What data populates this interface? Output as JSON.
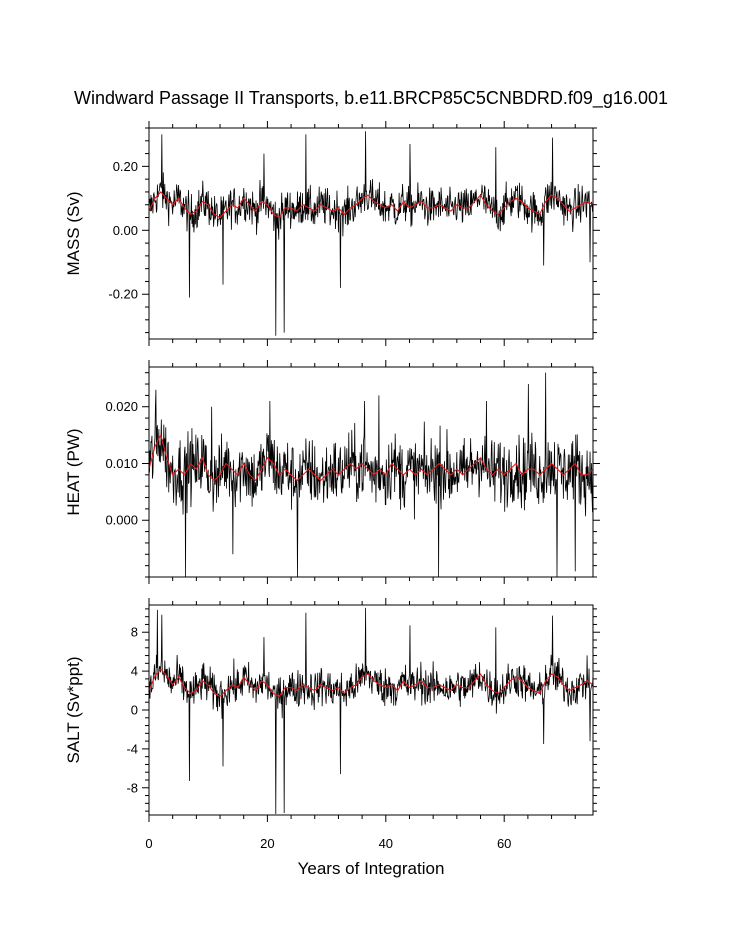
{
  "title": "Windward Passage II Transports, b.e11.BRCP85C5CNBDRD.f09_g16.001",
  "xlabel": "Years of Integration",
  "colors": {
    "raw": "#000000",
    "smoothed": "#e31a1c"
  },
  "chart_data": [
    {
      "type": "line",
      "ylabel": "MASS (Sv)",
      "xlim": [
        0,
        75
      ],
      "ylim": [
        -0.34,
        0.32
      ],
      "yticks": [
        -0.2,
        0.0,
        0.2
      ],
      "ytick_labels": [
        "-0.20",
        "0.00",
        "0.20"
      ],
      "xticks": [
        0,
        20,
        40,
        60
      ],
      "xtick_labels": [
        "0",
        "20",
        "40",
        "60"
      ],
      "show_xtick_labels": false,
      "series": [
        {
          "style": "raw",
          "samples_per_year": 12,
          "noise_amplitude": 0.055,
          "clip": [
            -0.34,
            0.31
          ],
          "spikes": [
            [
              2.2,
              0.3
            ],
            [
              6.8,
              -0.21
            ],
            [
              12.5,
              -0.17
            ],
            [
              19.4,
              0.24
            ],
            [
              21.4,
              -0.33
            ],
            [
              22.8,
              -0.32
            ],
            [
              26.5,
              0.3
            ],
            [
              32.3,
              -0.18
            ],
            [
              36.6,
              0.31
            ],
            [
              44.1,
              0.27
            ],
            [
              58.6,
              0.26
            ],
            [
              66.7,
              -0.11
            ],
            [
              68.2,
              0.29
            ],
            [
              74.5,
              -0.1
            ]
          ]
        },
        {
          "style": "smoothed",
          "x": [
            0,
            1,
            2,
            3,
            4,
            5,
            6,
            7,
            8,
            9,
            10,
            11,
            12,
            13,
            14,
            15,
            16,
            17,
            18,
            19,
            20,
            21,
            22,
            23,
            24,
            25,
            26,
            27,
            28,
            29,
            30,
            31,
            32,
            33,
            34,
            35,
            36,
            37,
            38,
            39,
            40,
            41,
            42,
            43,
            44,
            45,
            46,
            47,
            48,
            49,
            50,
            51,
            52,
            53,
            54,
            55,
            56,
            57,
            58,
            59,
            60,
            61,
            62,
            63,
            64,
            65,
            66,
            67,
            68,
            69,
            70,
            71,
            72,
            73,
            74,
            75
          ],
          "values": [
            0.06,
            0.1,
            0.12,
            0.1,
            0.08,
            0.1,
            0.07,
            0.05,
            0.06,
            0.09,
            0.08,
            0.05,
            0.04,
            0.06,
            0.08,
            0.07,
            0.1,
            0.08,
            0.06,
            0.09,
            0.08,
            0.05,
            0.04,
            0.07,
            0.07,
            0.06,
            0.08,
            0.07,
            0.06,
            0.08,
            0.07,
            0.06,
            0.07,
            0.05,
            0.07,
            0.08,
            0.1,
            0.11,
            0.09,
            0.08,
            0.07,
            0.08,
            0.06,
            0.09,
            0.07,
            0.08,
            0.09,
            0.07,
            0.07,
            0.08,
            0.07,
            0.06,
            0.08,
            0.07,
            0.07,
            0.09,
            0.11,
            0.08,
            0.06,
            0.05,
            0.07,
            0.09,
            0.1,
            0.09,
            0.07,
            0.06,
            0.05,
            0.09,
            0.11,
            0.1,
            0.08,
            0.06,
            0.07,
            0.08,
            0.09,
            0.08
          ]
        }
      ]
    },
    {
      "type": "line",
      "ylabel": "HEAT (PW)",
      "xlim": [
        0,
        75
      ],
      "ylim": [
        -0.01,
        0.027
      ],
      "yticks": [
        0.0,
        0.01,
        0.02
      ],
      "ytick_labels": [
        "0.000",
        "0.010",
        "0.020"
      ],
      "xticks": [
        0,
        20,
        40,
        60
      ],
      "xtick_labels": [
        "0",
        "20",
        "40",
        "60"
      ],
      "show_xtick_labels": false,
      "series": [
        {
          "style": "raw",
          "samples_per_year": 12,
          "noise_amplitude": 0.0055,
          "clip": [
            -0.01,
            0.027
          ],
          "spikes": [
            [
              1.2,
              0.023
            ],
            [
              6.2,
              -0.01
            ],
            [
              10.6,
              0.02
            ],
            [
              14.2,
              -0.006
            ],
            [
              20.4,
              0.021
            ],
            [
              25.1,
              -0.01
            ],
            [
              36.4,
              0.021
            ],
            [
              38.8,
              0.022
            ],
            [
              48.9,
              -0.01
            ],
            [
              57.0,
              0.021
            ],
            [
              64.1,
              0.024
            ],
            [
              67.0,
              0.026
            ],
            [
              68.9,
              -0.01
            ],
            [
              72.0,
              -0.009
            ]
          ]
        },
        {
          "style": "smoothed",
          "x": [
            0,
            1,
            2,
            3,
            4,
            5,
            6,
            7,
            8,
            9,
            10,
            11,
            12,
            13,
            14,
            15,
            16,
            17,
            18,
            19,
            20,
            21,
            22,
            23,
            24,
            25,
            26,
            27,
            28,
            29,
            30,
            31,
            32,
            33,
            34,
            35,
            36,
            37,
            38,
            39,
            40,
            41,
            42,
            43,
            44,
            45,
            46,
            47,
            48,
            49,
            50,
            51,
            52,
            53,
            54,
            55,
            56,
            57,
            58,
            59,
            60,
            61,
            62,
            63,
            64,
            65,
            66,
            67,
            68,
            69,
            70,
            71,
            72,
            73,
            74,
            75
          ],
          "values": [
            0.009,
            0.013,
            0.015,
            0.011,
            0.008,
            0.009,
            0.008,
            0.01,
            0.009,
            0.011,
            0.008,
            0.007,
            0.008,
            0.01,
            0.009,
            0.008,
            0.01,
            0.008,
            0.007,
            0.009,
            0.011,
            0.01,
            0.008,
            0.009,
            0.008,
            0.007,
            0.008,
            0.009,
            0.008,
            0.007,
            0.008,
            0.009,
            0.008,
            0.009,
            0.01,
            0.009,
            0.01,
            0.009,
            0.008,
            0.009,
            0.008,
            0.01,
            0.009,
            0.008,
            0.009,
            0.008,
            0.009,
            0.008,
            0.009,
            0.01,
            0.009,
            0.008,
            0.009,
            0.008,
            0.009,
            0.01,
            0.011,
            0.009,
            0.008,
            0.009,
            0.008,
            0.009,
            0.01,
            0.008,
            0.009,
            0.009,
            0.008,
            0.009,
            0.01,
            0.009,
            0.008,
            0.009,
            0.01,
            0.008,
            0.008,
            0.009
          ]
        }
      ]
    },
    {
      "type": "line",
      "ylabel": "SALT (Sv*ppt)",
      "xlim": [
        0,
        75
      ],
      "ylim": [
        -10.8,
        10.8
      ],
      "yticks": [
        -8,
        -4,
        0,
        4,
        8
      ],
      "ytick_labels": [
        "-8",
        "-4",
        "0",
        "4",
        "8"
      ],
      "xticks": [
        0,
        20,
        40,
        60
      ],
      "xtick_labels": [
        "0",
        "20",
        "40",
        "60"
      ],
      "show_xtick_labels": true,
      "series": [
        {
          "style": "raw",
          "samples_per_year": 12,
          "noise_amplitude": 1.8,
          "clip": [
            -10.8,
            10.6
          ],
          "spikes": [
            [
              1.4,
              10.3
            ],
            [
              2.2,
              9.8
            ],
            [
              6.8,
              -7.3
            ],
            [
              12.5,
              -5.8
            ],
            [
              19.4,
              7.5
            ],
            [
              21.4,
              -10.7
            ],
            [
              22.8,
              -10.6
            ],
            [
              26.5,
              10.0
            ],
            [
              32.3,
              -6.6
            ],
            [
              36.6,
              10.5
            ],
            [
              44.1,
              8.7
            ],
            [
              58.6,
              8.5
            ],
            [
              66.7,
              -3.5
            ],
            [
              68.2,
              9.7
            ],
            [
              74.5,
              -3.2
            ]
          ]
        },
        {
          "style": "smoothed",
          "x": [
            0,
            1,
            2,
            3,
            4,
            5,
            6,
            7,
            8,
            9,
            10,
            11,
            12,
            13,
            14,
            15,
            16,
            17,
            18,
            19,
            20,
            21,
            22,
            23,
            24,
            25,
            26,
            27,
            28,
            29,
            30,
            31,
            32,
            33,
            34,
            35,
            36,
            37,
            38,
            39,
            40,
            41,
            42,
            43,
            44,
            45,
            46,
            47,
            48,
            49,
            50,
            51,
            52,
            53,
            54,
            55,
            56,
            57,
            58,
            59,
            60,
            61,
            62,
            63,
            64,
            65,
            66,
            67,
            68,
            69,
            70,
            71,
            72,
            73,
            74,
            75
          ],
          "values": [
            2.0,
            3.5,
            4.2,
            3.5,
            2.6,
            3.4,
            2.3,
            1.7,
            2.0,
            3.0,
            2.6,
            1.7,
            1.4,
            2.0,
            2.6,
            2.3,
            3.4,
            2.6,
            2.0,
            3.0,
            2.6,
            1.7,
            1.4,
            2.3,
            2.3,
            2.0,
            2.6,
            2.3,
            2.0,
            2.6,
            2.3,
            2.0,
            2.3,
            1.7,
            2.3,
            2.6,
            3.4,
            3.7,
            3.0,
            2.6,
            2.3,
            2.6,
            2.0,
            3.0,
            2.3,
            2.6,
            3.0,
            2.3,
            2.3,
            2.6,
            2.3,
            2.0,
            2.6,
            2.3,
            2.3,
            3.0,
            3.7,
            2.6,
            2.0,
            1.7,
            2.3,
            3.0,
            3.4,
            3.0,
            2.3,
            2.0,
            1.7,
            3.0,
            3.7,
            3.4,
            2.6,
            2.0,
            2.3,
            2.6,
            3.0,
            2.6
          ]
        }
      ]
    }
  ]
}
